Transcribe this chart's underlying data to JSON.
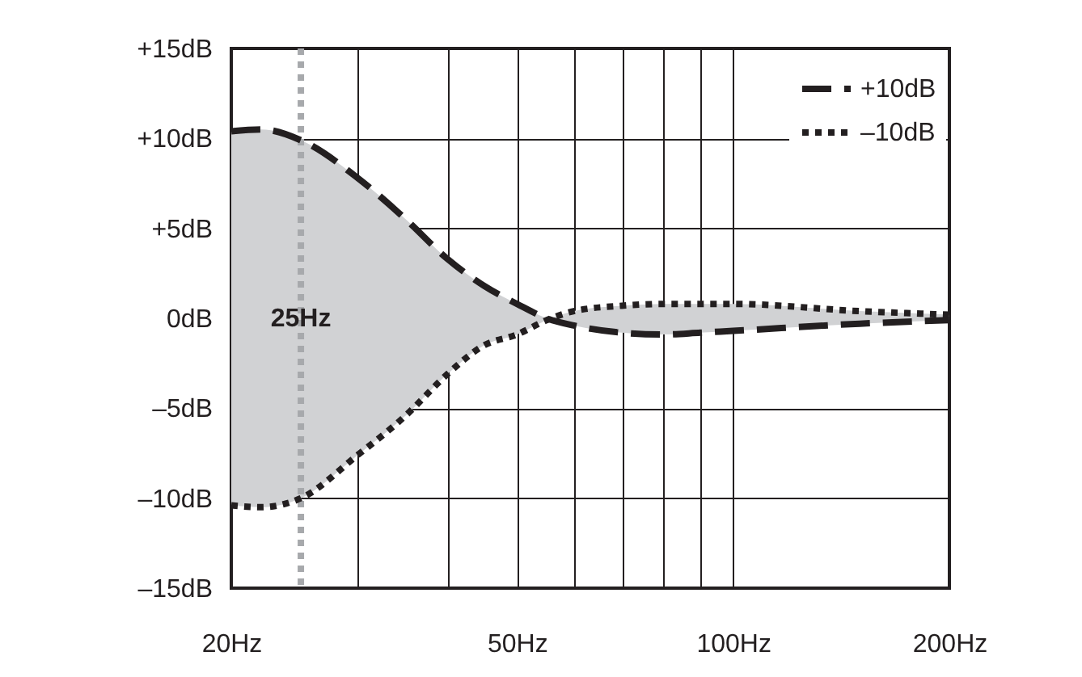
{
  "chart_data": {
    "type": "line",
    "x": [
      20,
      22,
      25,
      30,
      35,
      40,
      45,
      50,
      55,
      60,
      70,
      80,
      90,
      100,
      150,
      200
    ],
    "series": [
      {
        "name": "+10dB",
        "color": "#231f20",
        "line_style": "dashed",
        "values": [
          10.4,
          10.5,
          9.9,
          7.8,
          5.5,
          3.3,
          1.8,
          0.8,
          0,
          -0.4,
          -0.8,
          -0.9,
          -0.8,
          -0.7,
          -0.3,
          -0.1
        ],
        "lower": [
          -10.4,
          -10.5,
          -10,
          -7.6,
          -5.4,
          -3.1,
          -1.5,
          -0.9,
          -0.1,
          0.4,
          0.7,
          0.8,
          0.8,
          0.8,
          0.4,
          0.2
        ],
        "upper": [
          10.4,
          10.5,
          9.9,
          7.8,
          5.5,
          3.3,
          1.8,
          0.8,
          0,
          -0.4,
          -0.8,
          -0.9,
          -0.8,
          -0.7,
          -0.3,
          -0.1
        ]
      },
      {
        "name": "–10dB",
        "color": "#231f20",
        "line_style": "dotted",
        "values": [
          -10.4,
          -10.5,
          -10,
          -7.6,
          -5.4,
          -3.1,
          -1.5,
          -0.9,
          -0.1,
          0.4,
          0.7,
          0.8,
          0.8,
          0.8,
          0.4,
          0.2
        ]
      }
    ],
    "log": "x",
    "xlim": [
      20,
      200
    ],
    "xticks": [
      {
        "value": 20,
        "label": "20Hz"
      },
      {
        "value": 30,
        "label": null
      },
      {
        "value": 40,
        "label": null
      },
      {
        "value": 50,
        "label": "50Hz"
      },
      {
        "value": 60,
        "label": null
      },
      {
        "value": 70,
        "label": null
      },
      {
        "value": 80,
        "label": null
      },
      {
        "value": 90,
        "label": null
      },
      {
        "value": 100,
        "label": "100Hz"
      },
      {
        "value": 200,
        "label": "200Hz"
      }
    ],
    "ylim": [
      -15,
      15
    ],
    "yticks": [
      {
        "value": -15,
        "label": "–15dB"
      },
      {
        "value": -10,
        "label": "–10dB"
      },
      {
        "value": -5,
        "label": "–5dB"
      },
      {
        "value": 0,
        "label": "0dB"
      },
      {
        "value": 5,
        "label": "+5dB"
      },
      {
        "value": 10,
        "label": "+10dB"
      },
      {
        "value": 15,
        "label": "+15dB"
      }
    ],
    "grid": true,
    "legend": "top right",
    "ref_lines": [
      {
        "axis": "x",
        "value": 25,
        "label": "25Hz",
        "color": "#a7a9ac",
        "line_style": "dotted"
      }
    ]
  }
}
